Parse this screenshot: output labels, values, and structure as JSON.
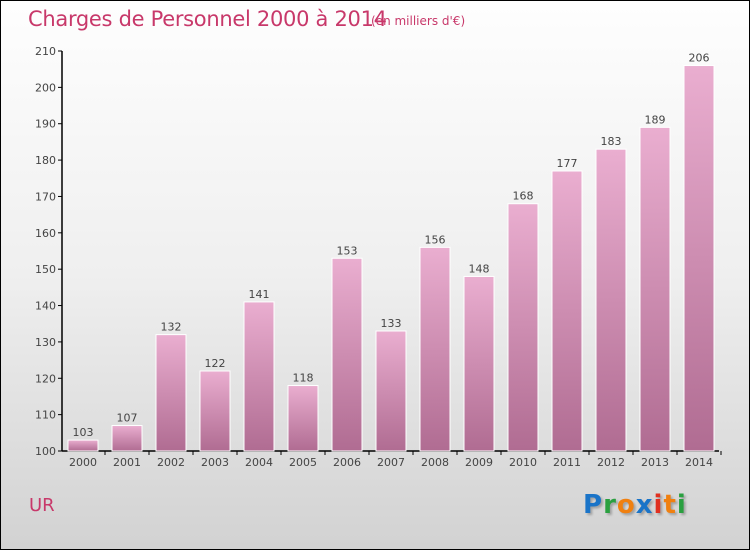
{
  "header": {
    "title": "Charges de Personnel 2000 à 2014",
    "unit": "(en milliers d'€)"
  },
  "footer": {
    "commune": "UR",
    "logo": "Proxiti",
    "logo_letters": [
      {
        "ch": "P",
        "color": "#1a74c8"
      },
      {
        "ch": "r",
        "color": "#2aa040"
      },
      {
        "ch": "o",
        "color": "#f08010"
      },
      {
        "ch": "x",
        "color": "#1a74c8"
      },
      {
        "ch": "i",
        "color": "#e03020"
      },
      {
        "ch": "t",
        "color": "#f08010"
      },
      {
        "ch": "i",
        "color": "#2aa040"
      }
    ]
  },
  "chart_data": {
    "type": "bar",
    "title": "Charges de Personnel 2000 à 2014",
    "subtitle": "(en milliers d'€)",
    "xlabel": "",
    "ylabel": "",
    "categories": [
      "2000",
      "2001",
      "2002",
      "2003",
      "2004",
      "2005",
      "2006",
      "2007",
      "2008",
      "2009",
      "2010",
      "2011",
      "2012",
      "2013",
      "2014"
    ],
    "values": [
      103,
      107,
      132,
      122,
      141,
      118,
      153,
      133,
      156,
      148,
      168,
      177,
      183,
      189,
      206
    ],
    "ylim": [
      100,
      210
    ],
    "yticks": [
      100,
      110,
      120,
      130,
      140,
      150,
      160,
      170,
      180,
      190,
      200,
      210
    ],
    "grid": false,
    "colors": {
      "bar_top": "#eaaed0",
      "bar_bottom": "#b06c92",
      "text": "#c8386a"
    }
  }
}
